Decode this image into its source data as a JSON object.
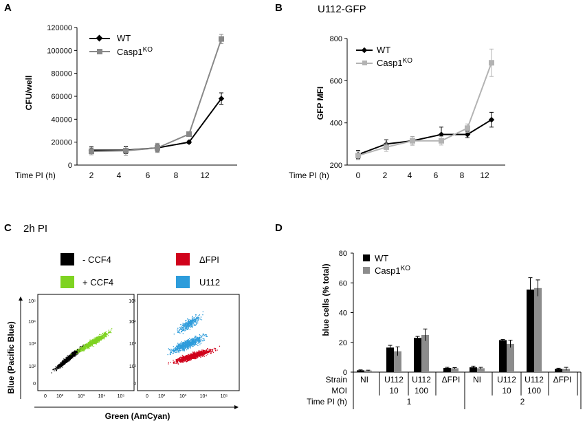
{
  "chart_data": [
    {
      "panel": "A",
      "type": "line",
      "title": "",
      "xlabel": "Time PI (h)",
      "ylabel": "CFU/well",
      "categories": [
        "2",
        "4",
        "6",
        "8",
        "12"
      ],
      "x": [
        1,
        2,
        3,
        4,
        5
      ],
      "ylim": [
        0,
        120000
      ],
      "yticks": [
        0,
        20000,
        40000,
        60000,
        80000,
        100000,
        120000
      ],
      "ytick_labels": [
        "0",
        "20000",
        "40000",
        "60000",
        "80000",
        "100000",
        "120000"
      ],
      "series": [
        {
          "name": "WT",
          "sup": "",
          "color": "#000000",
          "marker": "diamond",
          "values": [
            13000,
            13000,
            15000,
            20000,
            58000
          ],
          "errors": [
            3000,
            3000,
            3000,
            1000,
            5000
          ]
        },
        {
          "name": "Casp1",
          "sup": "KO",
          "color": "#888888",
          "marker": "square",
          "values": [
            12000,
            12500,
            15000,
            27000,
            110000
          ],
          "errors": [
            3000,
            4000,
            4000,
            2000,
            4000
          ]
        }
      ]
    },
    {
      "panel": "B",
      "type": "line",
      "title": "U112-GFP",
      "xlabel": "Time PI (h)",
      "ylabel": "GFP MFI",
      "categories": [
        "0",
        "2",
        "4",
        "6",
        "8",
        "12"
      ],
      "x": [
        1,
        2,
        3,
        4,
        5,
        6
      ],
      "ylim": [
        200,
        800
      ],
      "yticks": [
        200,
        400,
        600,
        800
      ],
      "ytick_labels": [
        "200",
        "400",
        "600",
        "800"
      ],
      "series": [
        {
          "name": "WT",
          "sup": "",
          "color": "#000000",
          "marker": "diamond",
          "values": [
            250,
            300,
            315,
            345,
            345,
            415
          ],
          "errors": [
            20,
            20,
            20,
            35,
            15,
            35
          ]
        },
        {
          "name": "Casp1",
          "sup": "KO",
          "color": "#b3b3b3",
          "marker": "square",
          "values": [
            245,
            285,
            315,
            315,
            375,
            685
          ],
          "errors": [
            20,
            20,
            20,
            20,
            20,
            65
          ]
        }
      ]
    },
    {
      "panel": "D",
      "type": "bar",
      "title": "",
      "xlabel": "",
      "ylabel": "blue cells (% total)",
      "ylim": [
        0,
        80
      ],
      "yticks": [
        0,
        20,
        40,
        60,
        80
      ],
      "ytick_labels": [
        "0",
        "20",
        "40",
        "60",
        "80"
      ],
      "row_labels": [
        "Strain",
        "MOI",
        "Time PI (h)"
      ],
      "categories": [
        {
          "strain": "NI",
          "moi": "",
          "time": "1"
        },
        {
          "strain": "U112",
          "moi": "10",
          "time": "1"
        },
        {
          "strain": "U112",
          "moi": "100",
          "time": "1"
        },
        {
          "strain": "ΔFPI",
          "moi": "",
          "time": "1"
        },
        {
          "strain": "NI",
          "moi": "",
          "time": "2"
        },
        {
          "strain": "U112",
          "moi": "10",
          "time": "2"
        },
        {
          "strain": "U112",
          "moi": "100",
          "time": "2"
        },
        {
          "strain": "ΔFPI",
          "moi": "",
          "time": "2"
        }
      ],
      "time_groups": [
        "1",
        "2"
      ],
      "series": [
        {
          "name": "WT",
          "sup": "",
          "color": "#000000",
          "values": [
            1.2,
            16.5,
            23,
            2.8,
            3.2,
            21.5,
            55.5,
            2.2
          ],
          "errors": [
            0.3,
            1.5,
            1,
            0.4,
            0.8,
            0.5,
            8,
            0.4
          ]
        },
        {
          "name": "Casp1",
          "sup": "KO",
          "color": "#8c8c8c",
          "values": [
            1,
            14,
            25,
            2.6,
            2.6,
            19,
            56.5,
            2.2
          ],
          "errors": [
            0.3,
            3,
            4,
            0.4,
            0.6,
            2.5,
            5.5,
            1
          ]
        }
      ]
    }
  ],
  "panels": {
    "A": {
      "letter": "A"
    },
    "B": {
      "letter": "B"
    },
    "C": {
      "letter": "C",
      "title": "2h PI",
      "legend": [
        {
          "label": "- CCF4",
          "color": "#000000"
        },
        {
          "label": "+ CCF4",
          "color": "#7ed321"
        },
        {
          "label": "ΔFPI",
          "color": "#d0021b"
        },
        {
          "label": "U112",
          "color": "#2d9cdb"
        }
      ],
      "xlabel": "Green (AmCyan)",
      "ylabel": "Blue (Pacific Blue)",
      "flow_ticks_x": [
        "0",
        "10²",
        "10³",
        "10⁴",
        "10⁵"
      ],
      "flow_ticks_y": [
        "0",
        "10²",
        "10³",
        "10⁴",
        "10⁵"
      ]
    },
    "D": {
      "letter": "D"
    }
  }
}
